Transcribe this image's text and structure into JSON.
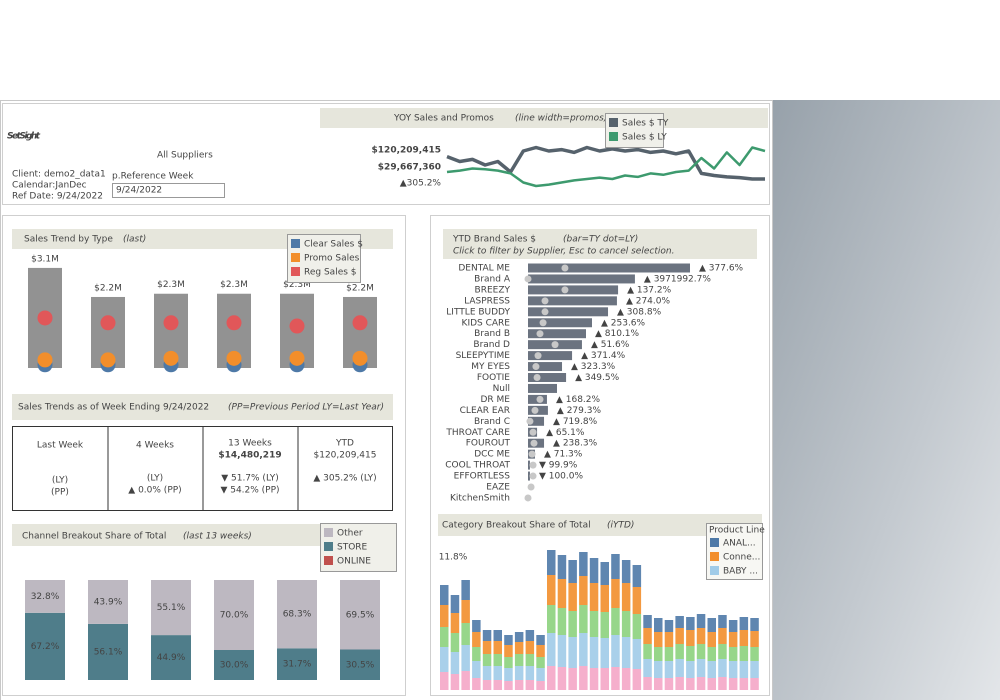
{
  "header": {
    "logo": "SetSight",
    "title": "All Suppliers",
    "info": [
      "Client: demo2_data1",
      "Calendar:JanDec",
      "Ref Date: 9/24/2022"
    ],
    "parameter_label": "p.Reference Week",
    "parameter_value": "9/24/2022"
  },
  "yoy": {
    "type": "line",
    "title": "YOY Sales  and Promos",
    "subtitle": "(line width=promos)",
    "kpis": [
      "$120,209,415",
      "$29,667,360",
      "▲305.2%"
    ],
    "ylim": [
      0,
      100
    ],
    "series": [
      {
        "name": "Sales $ TY",
        "color": "#56626c",
        "values": [
          62,
          55,
          58,
          50,
          55,
          40,
          70,
          75,
          70,
          72,
          68,
          75,
          70,
          73,
          70,
          72,
          68,
          70,
          66,
          70,
          38,
          35,
          33,
          32,
          30,
          30
        ]
      },
      {
        "name": "Sales $ LY",
        "color": "#3d9a6e",
        "values": [
          40,
          42,
          45,
          44,
          42,
          38,
          25,
          20,
          22,
          25,
          28,
          30,
          32,
          30,
          35,
          33,
          38,
          36,
          40,
          42,
          60,
          45,
          68,
          50,
          75,
          70
        ]
      }
    ]
  },
  "sales_trend": {
    "type": "bar",
    "title": "Sales Trend by Type",
    "subtitle": "(last)",
    "categories": [
      null,
      null,
      null,
      null,
      null,
      null
    ],
    "values": [
      3.1,
      2.2,
      2.3,
      2.3,
      2.3,
      2.2
    ],
    "value_labels": [
      "$3.1M",
      "$2.2M",
      "$2.3M",
      "$2.3M",
      "$2.3M",
      "$2.2M"
    ],
    "color": "#929292",
    "ylim": [
      0,
      3.5
    ],
    "dots": [
      {
        "name": "Clear Sales $",
        "color": "#4e79a7",
        "values": [
          0.1,
          0.1,
          0.1,
          0.1,
          0.1,
          0.1
        ]
      },
      {
        "name": "Promo Sales",
        "color": "#f28e2b",
        "values": [
          0.25,
          0.25,
          0.3,
          0.3,
          0.3,
          0.3
        ]
      },
      {
        "name": "Reg Sales $",
        "color": "#e15759",
        "values": [
          1.55,
          1.4,
          1.4,
          1.4,
          1.3,
          1.4
        ]
      }
    ]
  },
  "sales_trends_table": {
    "title": "Sales Trends as of Week Ending 9/24/2022",
    "subtitle": "(PP=Previous Period  LY=Last Year)",
    "columns": [
      [
        "Last Week",
        "(LY)",
        "(PP)"
      ],
      [
        "4 Weeks",
        "(LY)",
        "▲ 0.0% (PP)"
      ],
      [
        "13 Weeks",
        "$14,480,219",
        "▼ 51.7% (LY)",
        "▼ 54.2% (PP)"
      ],
      [
        "YTD",
        "$120,209,415",
        "▲ 305.2% (LY)"
      ]
    ]
  },
  "channel_breakout": {
    "type": "bar",
    "stacked": true,
    "title": "Channel Breakout Share of Total",
    "subtitle": "(last 13 weeks)",
    "categories": [
      null,
      null,
      null,
      null,
      null,
      null
    ],
    "ylim": [
      0,
      100
    ],
    "series": [
      {
        "name": "Other",
        "color": "#bdb8c1",
        "values": [
          32.8,
          43.9,
          55.1,
          70.0,
          68.3,
          69.5
        ],
        "value_labels": [
          "32.8%",
          "43.9%",
          "55.1%",
          "70.0%",
          "68.3%",
          "69.5%"
        ]
      },
      {
        "name": "STORE",
        "color": "#4f7d8a",
        "values": [
          67.2,
          56.1,
          44.9,
          30.0,
          31.7,
          30.5
        ],
        "value_labels": [
          "67.2%",
          "56.1%",
          "44.9%",
          "30.0%",
          "31.7%",
          "30.5%"
        ]
      },
      {
        "name": "ONLINE",
        "color": "#c0504d",
        "values": [
          0,
          0,
          0,
          0,
          0,
          0
        ]
      }
    ]
  },
  "brand_sales": {
    "type": "bar",
    "orientation": "horizontal",
    "title": "YTD Brand Sales $",
    "subtitle": "(bar=TY  dot=LY)",
    "note": "Click to filter by Supplier, Esc to cancel selection.",
    "categories": [
      "DENTAL ME",
      "Brand A",
      "BREEZY",
      "LASPRESS",
      "LITTLE BUDDY",
      "KIDS CARE",
      "Brand B",
      "Brand D",
      "SLEEPYTIME",
      "MY EYES",
      "FOOTIE",
      "Null",
      "DR ME",
      "CLEAR EAR",
      "Brand C",
      "THROAT CARE",
      "FOUROUT",
      "DCC ME",
      "COOL THROAT",
      "EFFORTLESS",
      "EAZE",
      "KitchenSmith"
    ],
    "xlim": [
      0,
      100
    ],
    "color": "#6b7380",
    "dot_color": "#c8c8c8",
    "values": [
      100,
      66,
      55.6,
      54.9,
      49.4,
      39.5,
      35.8,
      33.3,
      27.2,
      21,
      23.5,
      17.9,
      11.7,
      12.3,
      9.9,
      5.6,
      9.9,
      4.3,
      1.2,
      1.2,
      0,
      0
    ],
    "dot_values": [
      22.8,
      0,
      22.8,
      10.5,
      10.5,
      9.3,
      7.4,
      16.7,
      6.2,
      4.9,
      5.6,
      null,
      7.4,
      4.3,
      1.2,
      3.1,
      3.7,
      2.5,
      3.1,
      3.1,
      1.9,
      0
    ],
    "change_labels": [
      "▲ 377.6%",
      "▲ 3971992.7%",
      "▲ 137.2%",
      "▲ 274.0%",
      "▲ 308.8%",
      "▲ 253.6%",
      "▲ 810.1%",
      "▲ 51.6%",
      "▲ 371.4%",
      "▲ 323.3%",
      "▲ 349.5%",
      null,
      "▲ 168.2%",
      "▲ 279.3%",
      "▲ 719.8%",
      "▲ 65.1%",
      "▲ 238.3%",
      "▲ 71.3%",
      "▼ 99.9%",
      "▼ 100.0%",
      null,
      null
    ]
  },
  "category_breakout": {
    "type": "bar",
    "stacked": true,
    "title": "Category Breakout Share of Total",
    "subtitle": "(iYTD)",
    "legend_title": "Product Line",
    "annotation": "11.8%",
    "ylim": [
      0,
      150
    ],
    "series": [
      {
        "color": "#f4a6c6",
        "values": [
          18,
          16,
          19,
          12,
          10,
          10,
          9,
          10,
          10,
          9,
          24,
          23,
          22,
          24,
          22,
          22,
          23,
          22,
          21,
          13,
          12,
          12,
          13,
          12,
          13,
          12,
          13,
          12,
          12,
          12
        ]
      },
      {
        "name": "BABY ...",
        "color": "#a0cbe8",
        "values": [
          25,
          22,
          26,
          17,
          14,
          14,
          13,
          14,
          14,
          13,
          33,
          32,
          31,
          33,
          31,
          30,
          32,
          31,
          30,
          18,
          17,
          17,
          18,
          17,
          18,
          17,
          18,
          17,
          17,
          17
        ]
      },
      {
        "color": "#8cd17d",
        "values": [
          20,
          19,
          22,
          14,
          12,
          12,
          11,
          12,
          12,
          11,
          28,
          27,
          26,
          28,
          26,
          26,
          27,
          26,
          25,
          15,
          14,
          14,
          15,
          15,
          15,
          14,
          15,
          14,
          15,
          14
        ]
      },
      {
        "name": "Conne...",
        "color": "#f28e2b",
        "values": [
          22,
          20,
          23,
          15,
          13,
          13,
          12,
          12,
          13,
          12,
          30,
          29,
          28,
          29,
          28,
          27,
          29,
          28,
          27,
          16,
          15,
          15,
          16,
          16,
          16,
          15,
          16,
          15,
          16,
          16
        ]
      },
      {
        "name": "ANAL...",
        "color": "#4e79a7",
        "values": [
          20,
          18,
          20,
          12,
          11,
          11,
          10,
          10,
          11,
          10,
          25,
          24,
          23,
          24,
          25,
          23,
          25,
          23,
          22,
          13,
          14,
          12,
          12,
          13,
          14,
          14,
          13,
          12,
          13,
          13
        ]
      }
    ]
  }
}
